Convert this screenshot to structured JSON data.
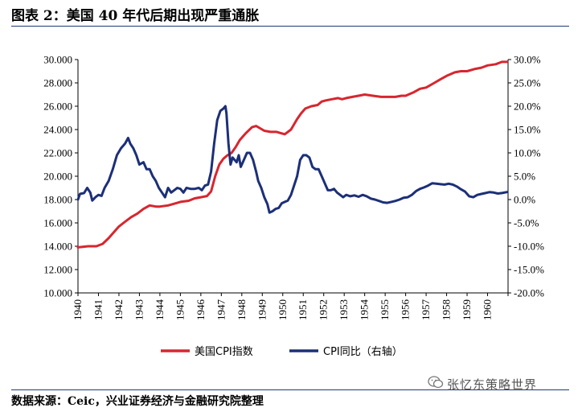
{
  "figure": {
    "title": "图表 2：美国 40 年代后期出现严重通胀",
    "source": "数据来源：Ceic，兴业证券经济与金融研究院整理",
    "watermark": "张忆东策略世界"
  },
  "chart_data": {
    "type": "line",
    "x_range": [
      1940,
      1961
    ],
    "x_tick_labels": [
      "1940",
      "1941",
      "1942",
      "1943",
      "1944",
      "1945",
      "1946",
      "1947",
      "1948",
      "1949",
      "1950",
      "1951",
      "1952",
      "1953",
      "1954",
      "1955",
      "1956",
      "1957",
      "1958",
      "1959",
      "1960"
    ],
    "left_axis": {
      "min": 10,
      "max": 30,
      "ticks": [
        "10.000",
        "12.000",
        "14.000",
        "16.000",
        "18.000",
        "20.000",
        "22.000",
        "24.000",
        "26.000",
        "28.000",
        "30.000"
      ]
    },
    "right_axis": {
      "min": -20,
      "max": 30,
      "ticks": [
        "-20.0%",
        "-15.0%",
        "-10.0%",
        "-5.0%",
        "0.0%",
        "5.0%",
        "10.0%",
        "15.0%",
        "20.0%",
        "25.0%",
        "30.0%"
      ]
    },
    "grid": false,
    "legend_position": "bottom",
    "series": [
      {
        "name": "美国CPI指数",
        "axis": "left",
        "color": "#d7262e",
        "points": [
          [
            1940.0,
            13.9
          ],
          [
            1940.5,
            14.0
          ],
          [
            1940.9,
            14.0
          ],
          [
            1941.2,
            14.2
          ],
          [
            1941.5,
            14.7
          ],
          [
            1941.8,
            15.3
          ],
          [
            1942.0,
            15.7
          ],
          [
            1942.3,
            16.1
          ],
          [
            1942.6,
            16.5
          ],
          [
            1942.9,
            16.8
          ],
          [
            1943.2,
            17.2
          ],
          [
            1943.5,
            17.5
          ],
          [
            1943.8,
            17.4
          ],
          [
            1944.0,
            17.4
          ],
          [
            1944.4,
            17.5
          ],
          [
            1944.8,
            17.7
          ],
          [
            1945.0,
            17.8
          ],
          [
            1945.4,
            17.9
          ],
          [
            1945.7,
            18.1
          ],
          [
            1946.0,
            18.2
          ],
          [
            1946.3,
            18.3
          ],
          [
            1946.5,
            18.7
          ],
          [
            1946.7,
            20.0
          ],
          [
            1946.9,
            21.0
          ],
          [
            1947.1,
            21.5
          ],
          [
            1947.3,
            21.8
          ],
          [
            1947.5,
            22.0
          ],
          [
            1947.7,
            22.5
          ],
          [
            1947.9,
            23.1
          ],
          [
            1948.2,
            23.7
          ],
          [
            1948.5,
            24.2
          ],
          [
            1948.7,
            24.3
          ],
          [
            1948.9,
            24.1
          ],
          [
            1949.1,
            23.9
          ],
          [
            1949.4,
            23.8
          ],
          [
            1949.7,
            23.8
          ],
          [
            1949.9,
            23.7
          ],
          [
            1950.1,
            23.6
          ],
          [
            1950.4,
            24.0
          ],
          [
            1950.7,
            24.9
          ],
          [
            1950.9,
            25.4
          ],
          [
            1951.1,
            25.8
          ],
          [
            1951.4,
            26.0
          ],
          [
            1951.7,
            26.1
          ],
          [
            1951.9,
            26.4
          ],
          [
            1952.1,
            26.5
          ],
          [
            1952.4,
            26.6
          ],
          [
            1952.7,
            26.7
          ],
          [
            1952.9,
            26.6
          ],
          [
            1953.1,
            26.7
          ],
          [
            1953.4,
            26.8
          ],
          [
            1953.7,
            26.9
          ],
          [
            1954.0,
            27.0
          ],
          [
            1954.4,
            26.9
          ],
          [
            1954.8,
            26.8
          ],
          [
            1955.1,
            26.8
          ],
          [
            1955.5,
            26.8
          ],
          [
            1955.8,
            26.9
          ],
          [
            1956.0,
            26.9
          ],
          [
            1956.4,
            27.2
          ],
          [
            1956.7,
            27.5
          ],
          [
            1957.0,
            27.6
          ],
          [
            1957.4,
            28.0
          ],
          [
            1957.7,
            28.3
          ],
          [
            1958.0,
            28.6
          ],
          [
            1958.4,
            28.9
          ],
          [
            1958.7,
            29.0
          ],
          [
            1959.0,
            29.0
          ],
          [
            1959.4,
            29.2
          ],
          [
            1959.7,
            29.3
          ],
          [
            1960.0,
            29.5
          ],
          [
            1960.4,
            29.6
          ],
          [
            1960.7,
            29.8
          ],
          [
            1960.95,
            29.8
          ]
        ]
      },
      {
        "name": "CPI同比（右轴）",
        "axis": "right",
        "color": "#1c2f78",
        "points": [
          [
            1940.0,
            0.0
          ],
          [
            1940.1,
            1.2
          ],
          [
            1940.3,
            1.4
          ],
          [
            1940.45,
            2.5
          ],
          [
            1940.6,
            1.5
          ],
          [
            1940.7,
            -0.2
          ],
          [
            1940.85,
            0.5
          ],
          [
            1941.0,
            1.0
          ],
          [
            1941.15,
            0.8
          ],
          [
            1941.3,
            2.5
          ],
          [
            1941.5,
            4.0
          ],
          [
            1941.7,
            6.5
          ],
          [
            1941.9,
            9.5
          ],
          [
            1942.1,
            11.0
          ],
          [
            1942.3,
            12.0
          ],
          [
            1942.45,
            13.2
          ],
          [
            1942.55,
            12.0
          ],
          [
            1942.7,
            11.0
          ],
          [
            1942.85,
            9.5
          ],
          [
            1943.0,
            7.5
          ],
          [
            1943.2,
            8.0
          ],
          [
            1943.35,
            6.5
          ],
          [
            1943.5,
            6.5
          ],
          [
            1943.65,
            5.0
          ],
          [
            1943.8,
            4.0
          ],
          [
            1943.95,
            2.5
          ],
          [
            1944.1,
            1.5
          ],
          [
            1944.25,
            0.5
          ],
          [
            1944.4,
            2.5
          ],
          [
            1944.55,
            1.5
          ],
          [
            1944.7,
            2.0
          ],
          [
            1944.85,
            2.5
          ],
          [
            1945.0,
            2.3
          ],
          [
            1945.15,
            1.5
          ],
          [
            1945.3,
            2.5
          ],
          [
            1945.5,
            2.3
          ],
          [
            1945.7,
            2.3
          ],
          [
            1945.9,
            2.5
          ],
          [
            1946.05,
            2.0
          ],
          [
            1946.2,
            3.0
          ],
          [
            1946.35,
            3.2
          ],
          [
            1946.5,
            6.0
          ],
          [
            1946.65,
            12.0
          ],
          [
            1946.8,
            17.0
          ],
          [
            1946.95,
            19.0
          ],
          [
            1947.1,
            19.5
          ],
          [
            1947.2,
            20.0
          ],
          [
            1947.25,
            18.5
          ],
          [
            1947.35,
            12.0
          ],
          [
            1947.45,
            7.5
          ],
          [
            1947.55,
            9.0
          ],
          [
            1947.65,
            8.5
          ],
          [
            1947.75,
            8.0
          ],
          [
            1947.85,
            9.5
          ],
          [
            1947.95,
            7.0
          ],
          [
            1948.05,
            8.0
          ],
          [
            1948.25,
            10.0
          ],
          [
            1948.4,
            10.0
          ],
          [
            1948.55,
            8.5
          ],
          [
            1948.7,
            6.0
          ],
          [
            1948.8,
            4.0
          ],
          [
            1948.95,
            2.5
          ],
          [
            1949.1,
            0.5
          ],
          [
            1949.25,
            -1.0
          ],
          [
            1949.35,
            -2.8
          ],
          [
            1949.5,
            -2.5
          ],
          [
            1949.65,
            -2.0
          ],
          [
            1949.8,
            -1.8
          ],
          [
            1949.95,
            -0.8
          ],
          [
            1950.1,
            -0.5
          ],
          [
            1950.25,
            -0.2
          ],
          [
            1950.4,
            1.0
          ],
          [
            1950.55,
            3.0
          ],
          [
            1950.7,
            5.0
          ],
          [
            1950.85,
            8.5
          ],
          [
            1951.0,
            9.5
          ],
          [
            1951.15,
            9.5
          ],
          [
            1951.3,
            9.0
          ],
          [
            1951.45,
            7.0
          ],
          [
            1951.6,
            6.5
          ],
          [
            1951.75,
            6.5
          ],
          [
            1951.9,
            5.0
          ],
          [
            1952.05,
            3.5
          ],
          [
            1952.2,
            2.0
          ],
          [
            1952.35,
            2.0
          ],
          [
            1952.5,
            2.3
          ],
          [
            1952.65,
            1.5
          ],
          [
            1952.8,
            1.0
          ],
          [
            1952.95,
            0.5
          ],
          [
            1953.1,
            1.0
          ],
          [
            1953.3,
            0.7
          ],
          [
            1953.5,
            0.9
          ],
          [
            1953.7,
            0.6
          ],
          [
            1953.9,
            1.0
          ],
          [
            1954.1,
            0.7
          ],
          [
            1954.3,
            0.2
          ],
          [
            1954.5,
            0.0
          ],
          [
            1954.7,
            -0.3
          ],
          [
            1954.9,
            -0.6
          ],
          [
            1955.1,
            -0.7
          ],
          [
            1955.3,
            -0.5
          ],
          [
            1955.5,
            -0.3
          ],
          [
            1955.7,
            0.0
          ],
          [
            1955.9,
            0.4
          ],
          [
            1956.1,
            0.5
          ],
          [
            1956.3,
            1.0
          ],
          [
            1956.5,
            1.8
          ],
          [
            1956.7,
            2.3
          ],
          [
            1956.9,
            2.6
          ],
          [
            1957.1,
            3.0
          ],
          [
            1957.3,
            3.5
          ],
          [
            1957.5,
            3.4
          ],
          [
            1957.7,
            3.3
          ],
          [
            1957.9,
            3.2
          ],
          [
            1958.1,
            3.4
          ],
          [
            1958.3,
            3.2
          ],
          [
            1958.5,
            2.8
          ],
          [
            1958.7,
            2.2
          ],
          [
            1958.9,
            1.7
          ],
          [
            1959.1,
            0.7
          ],
          [
            1959.3,
            0.5
          ],
          [
            1959.5,
            1.0
          ],
          [
            1959.7,
            1.2
          ],
          [
            1959.9,
            1.4
          ],
          [
            1960.1,
            1.6
          ],
          [
            1960.3,
            1.5
          ],
          [
            1960.5,
            1.3
          ],
          [
            1960.7,
            1.4
          ],
          [
            1960.95,
            1.6
          ]
        ]
      }
    ]
  }
}
